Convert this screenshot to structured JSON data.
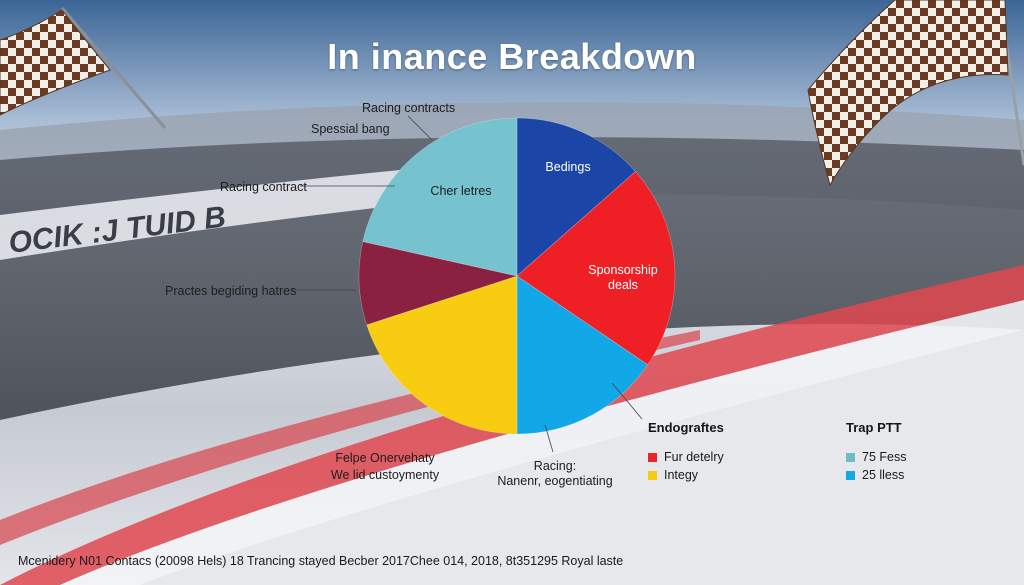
{
  "chart_data": {
    "type": "pie",
    "title": "In inance Breakdown",
    "slices": [
      {
        "label": "Bedings",
        "value": 13.5,
        "color": "#1b46a8"
      },
      {
        "label": "Sponsorship deals",
        "value": 21.0,
        "color": "#ee2025"
      },
      {
        "label": "",
        "value": 15.5,
        "color": "#12a7e6"
      },
      {
        "label": "",
        "value": 20.0,
        "color": "#f8cc11"
      },
      {
        "label": "",
        "value": 8.5,
        "color": "#8a2140"
      },
      {
        "label": "Cher letres",
        "value": 21.5,
        "color": "#76c2cf"
      }
    ],
    "annotations": {
      "racing_contracts": "Racing contracts",
      "special_bang": "Spessial bang",
      "racing_contract": "Racing contract",
      "practice": "Practes begiding hatres",
      "felpe_line1": "Felpe Onervehaty",
      "felpe_line2": "We lid custoymenty",
      "racing_line1": "Racing:",
      "racing_line2": "Nanenr, eogentiating"
    },
    "legends": [
      {
        "title": "Endograftes",
        "entries": [
          {
            "label": "Fur detelry",
            "color": "#e8252b"
          },
          {
            "label": "Integy",
            "color": "#f6cc12"
          }
        ]
      },
      {
        "title": "Trap PTT",
        "entries": [
          {
            "label": "75 Fess",
            "color": "#6fbcc8"
          },
          {
            "label": "25 lless",
            "color": "#15a8e2"
          }
        ]
      }
    ]
  },
  "scene": {
    "banner_text": "OCIK :J TUID B",
    "colors": {
      "curb_red": "#e0484f",
      "track_dark": "#4a4f5a",
      "sky": "#3f6796"
    }
  },
  "footer": "Mcenidery N01 Contacs (20098 Hels) 18 Trancing stayed Becber 2017Chee 014, 2018, 8t351295 Royal laste"
}
